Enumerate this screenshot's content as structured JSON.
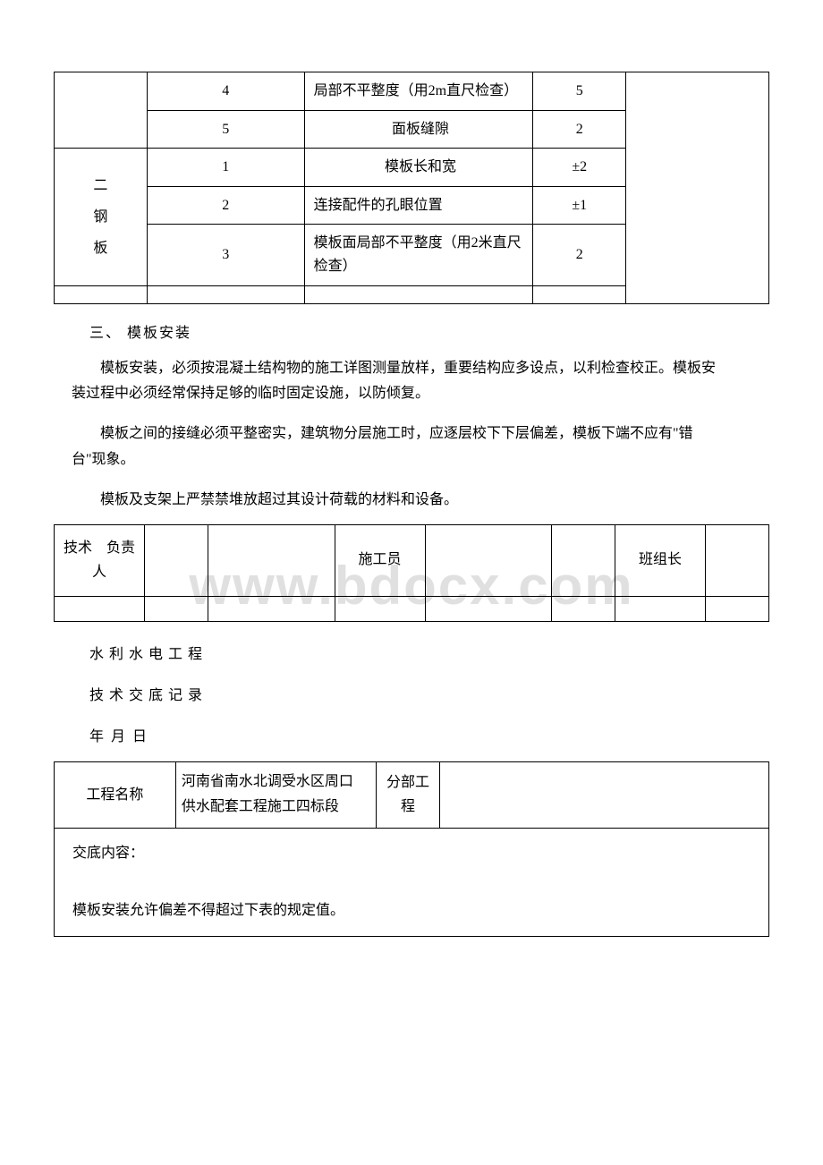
{
  "table1": {
    "r1": {
      "c2": "4",
      "c3": "局部不平整度（用2m直尺检查）",
      "c4": "5"
    },
    "r2": {
      "c2": "5",
      "c3": "面板缝隙",
      "c4": "2"
    },
    "r3": {
      "c1_line1": "二",
      "c1_line2": "钢",
      "c1_line3": "板",
      "c2": "1",
      "c3": "模板长和宽",
      "c4": "±2"
    },
    "r4": {
      "c2": "2",
      "c3": "连接配件的孔眼位置",
      "c4": "±1"
    },
    "r5": {
      "c2": "3",
      "c3": "模板面局部不平整度（用2米直尺检查）",
      "c4": "2"
    }
  },
  "section1": {
    "title": "三、 模板安装",
    "p1": "模板安装，必须按混凝土结构物的施工详图测量放样，重要结构应多设点，以利检查校正。模板安装过程中必须经常保持足够的临时固定设施，以防倾复。",
    "p2": "模板之间的接缝必须平整密实，建筑物分层施工时，应逐层校下下层偏差，模板下端不应有\"错台\"现象。",
    "p3": "模板及支架上严禁禁堆放超过其设计荷载的材料和设备。"
  },
  "watermark": "www.bdocx.com",
  "sign": {
    "label1": "技术　负责人",
    "label2": "施工员",
    "label3": "班组长"
  },
  "titles": {
    "t1": "水利水电工程",
    "t2": "技术交底记录",
    "t3": "年 月 日"
  },
  "table3": {
    "r1": {
      "c1": "工程名称",
      "c2": "河南省南水北调受水区周口\n供水配套工程施工四标段",
      "c3": "分部工程"
    },
    "r2": {
      "line1": "交底内容：",
      "line2": "模板安装允许偏差不得超过下表的规定值。"
    }
  }
}
